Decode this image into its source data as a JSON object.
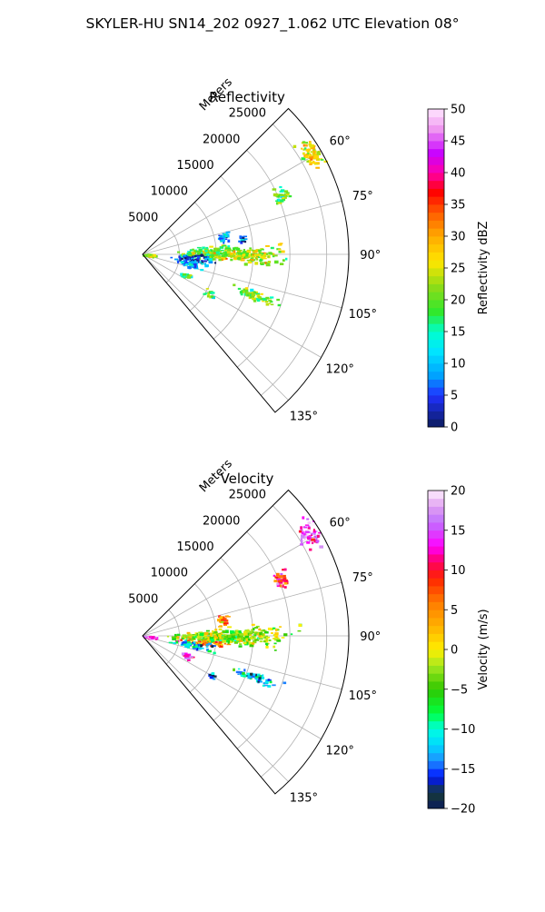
{
  "figure": {
    "title": "SKYLER-HU  SN14_202  0927_1.062 UTC Elevation 08°"
  },
  "chart_data": [
    {
      "type": "scatter",
      "subtype": "polar-sector",
      "title": "Reflectivity",
      "radial_label": "Meters",
      "radial_ticks": [
        "5000",
        "10000",
        "15000",
        "20000",
        "25000"
      ],
      "radial_tick_values": [
        5000,
        10000,
        15000,
        20000,
        25000
      ],
      "angle_ticks": [
        "60°",
        "75°",
        "90°",
        "105°",
        "120°",
        "135°"
      ],
      "angle_tick_values": [
        60,
        75,
        90,
        105,
        120,
        135
      ],
      "theta_range": [
        45,
        140
      ],
      "r_range": [
        0,
        28000
      ],
      "grid": true,
      "colorbar": {
        "label": "Reflectivity dBZ",
        "range": [
          0,
          50
        ],
        "ticks": [
          "0",
          "5",
          "10",
          "15",
          "20",
          "25",
          "30",
          "35",
          "40",
          "45",
          "50"
        ],
        "tick_values": [
          0,
          5,
          10,
          15,
          20,
          25,
          30,
          35,
          40,
          45,
          50
        ]
      },
      "echo_regions": [
        {
          "theta": 58.5,
          "r": 26500,
          "value": 26,
          "spread_r": 700,
          "spread_t": 2.0,
          "n": 70
        },
        {
          "theta": 67,
          "r": 20300,
          "value": 20,
          "spread_r": 500,
          "spread_t": 1.5,
          "n": 30
        },
        {
          "theta": 78,
          "r": 11000,
          "value": 9,
          "spread_r": 400,
          "spread_t": 2.0,
          "n": 25
        },
        {
          "theta": 80,
          "r": 13500,
          "value": 4,
          "spread_r": 300,
          "spread_t": 1.5,
          "n": 12
        },
        {
          "theta": 88,
          "r": 9000,
          "value": 20,
          "spread_r": 1800,
          "spread_t": 2.5,
          "n": 200
        },
        {
          "theta": 90,
          "r": 14500,
          "value": 24,
          "spread_r": 2200,
          "spread_t": 2.0,
          "n": 160
        },
        {
          "theta": 94,
          "r": 7000,
          "value": 3,
          "spread_r": 1500,
          "spread_t": 2.0,
          "n": 50
        },
        {
          "theta": 100,
          "r": 6500,
          "value": 10,
          "spread_r": 1000,
          "spread_t": 2.0,
          "n": 40
        },
        {
          "theta": 92,
          "r": 800,
          "value": 25,
          "spread_r": 400,
          "spread_t": 5.0,
          "n": 35
        },
        {
          "theta": 110,
          "r": 16000,
          "value": 21,
          "spread_r": 1400,
          "spread_t": 1.2,
          "n": 60
        },
        {
          "theta": 115,
          "r": 6500,
          "value": 16,
          "spread_r": 400,
          "spread_t": 1.5,
          "n": 18
        },
        {
          "theta": 120,
          "r": 10500,
          "value": 18,
          "spread_r": 350,
          "spread_t": 1.2,
          "n": 12
        }
      ]
    },
    {
      "type": "scatter",
      "subtype": "polar-sector",
      "title": "Velocity",
      "radial_label": "Meters",
      "radial_ticks": [
        "5000",
        "10000",
        "15000",
        "20000",
        "25000"
      ],
      "radial_tick_values": [
        5000,
        10000,
        15000,
        20000,
        25000
      ],
      "angle_ticks": [
        "60°",
        "75°",
        "90°",
        "105°",
        "120°",
        "135°"
      ],
      "angle_tick_values": [
        60,
        75,
        90,
        105,
        120,
        135
      ],
      "theta_range": [
        45,
        140
      ],
      "r_range": [
        0,
        28000
      ],
      "grid": true,
      "colorbar": {
        "label": "Velocity (m/s)",
        "range": [
          -20,
          20
        ],
        "ticks": [
          "−20",
          "−15",
          "−10",
          "−5",
          "0",
          "5",
          "10",
          "15",
          "20"
        ],
        "tick_values": [
          -20,
          -15,
          -10,
          -5,
          0,
          5,
          10,
          15,
          20
        ]
      },
      "echo_regions": [
        {
          "theta": 58.5,
          "r": 26500,
          "value": 16,
          "spread_r": 700,
          "spread_t": 2.0,
          "n": 70
        },
        {
          "theta": 67,
          "r": 20300,
          "value": 10,
          "spread_r": 500,
          "spread_t": 1.5,
          "n": 30
        },
        {
          "theta": 78,
          "r": 11000,
          "value": 6,
          "spread_r": 400,
          "spread_t": 2.0,
          "n": 25
        },
        {
          "theta": 90,
          "r": 12000,
          "value": -3,
          "spread_r": 3500,
          "spread_t": 2.5,
          "n": 360
        },
        {
          "theta": 96,
          "r": 8000,
          "value": 6,
          "spread_r": 1500,
          "spread_t": 1.0,
          "n": 40
        },
        {
          "theta": 100,
          "r": 6500,
          "value": -12,
          "spread_r": 1500,
          "spread_t": 2.0,
          "n": 50
        },
        {
          "theta": 95,
          "r": 900,
          "value": 16,
          "spread_r": 500,
          "spread_t": 6.0,
          "n": 40
        },
        {
          "theta": 110,
          "r": 16000,
          "value": -12,
          "spread_r": 1400,
          "spread_t": 1.2,
          "n": 60
        },
        {
          "theta": 115,
          "r": 6500,
          "value": 15,
          "spread_r": 400,
          "spread_t": 1.5,
          "n": 18
        },
        {
          "theta": 120,
          "r": 10500,
          "value": -17,
          "spread_r": 350,
          "spread_t": 1.2,
          "n": 10
        }
      ]
    }
  ]
}
